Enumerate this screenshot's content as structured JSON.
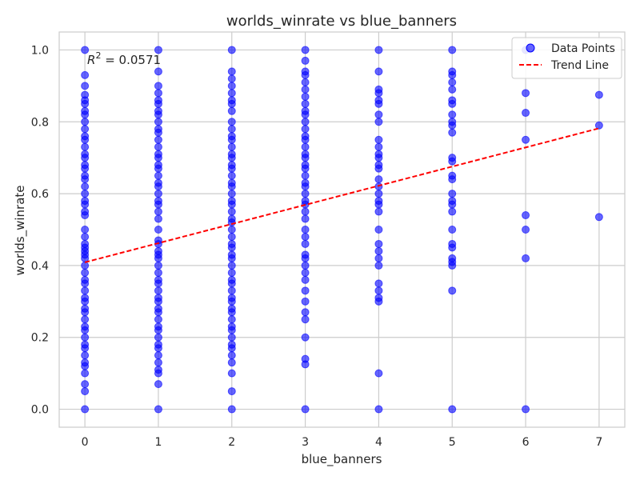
{
  "chart_data": {
    "type": "scatter",
    "title": "worlds_winrate vs blue_banners",
    "xlabel": "blue_banners",
    "ylabel": "worlds_winrate",
    "xlim": [
      -0.35,
      7.35
    ],
    "ylim": [
      -0.05,
      1.05
    ],
    "xticks": [
      "0",
      "1",
      "2",
      "3",
      "4",
      "5",
      "6",
      "7"
    ],
    "yticks": [
      "0.0",
      "0.2",
      "0.4",
      "0.6",
      "0.8",
      "1.0"
    ],
    "grid": true,
    "legend_position": "top-right",
    "annotation": {
      "label": "R",
      "sup": "2",
      "value": " = 0.0571"
    },
    "colors": {
      "points": "#0000ff",
      "trend": "#ff0000",
      "grid": "#cccccc"
    },
    "series": [
      {
        "name": "Data Points",
        "kind": "scatter",
        "points": [
          [
            0,
            1.0
          ],
          [
            0,
            0.93
          ],
          [
            0,
            0.9
          ],
          [
            0,
            0.875
          ],
          [
            0,
            0.86
          ],
          [
            0,
            0.85
          ],
          [
            0,
            0.83
          ],
          [
            0,
            0.82
          ],
          [
            0,
            0.8
          ],
          [
            0,
            0.78
          ],
          [
            0,
            0.76
          ],
          [
            0,
            0.75
          ],
          [
            0,
            0.73
          ],
          [
            0,
            0.71
          ],
          [
            0,
            0.7
          ],
          [
            0,
            0.68
          ],
          [
            0,
            0.67
          ],
          [
            0,
            0.65
          ],
          [
            0,
            0.64
          ],
          [
            0,
            0.62
          ],
          [
            0,
            0.6
          ],
          [
            0,
            0.58
          ],
          [
            0,
            0.57
          ],
          [
            0,
            0.55
          ],
          [
            0,
            0.54
          ],
          [
            0,
            0.5
          ],
          [
            0,
            0.48
          ],
          [
            0,
            0.46
          ],
          [
            0,
            0.45
          ],
          [
            0,
            0.44
          ],
          [
            0,
            0.43
          ],
          [
            0,
            0.42
          ],
          [
            0,
            0.4
          ],
          [
            0,
            0.38
          ],
          [
            0,
            0.36
          ],
          [
            0,
            0.35
          ],
          [
            0,
            0.33
          ],
          [
            0,
            0.31
          ],
          [
            0,
            0.3
          ],
          [
            0,
            0.28
          ],
          [
            0,
            0.27
          ],
          [
            0,
            0.25
          ],
          [
            0,
            0.23
          ],
          [
            0,
            0.22
          ],
          [
            0,
            0.2
          ],
          [
            0,
            0.18
          ],
          [
            0,
            0.17
          ],
          [
            0,
            0.15
          ],
          [
            0,
            0.13
          ],
          [
            0,
            0.12
          ],
          [
            0,
            0.1
          ],
          [
            0,
            0.07
          ],
          [
            0,
            0.05
          ],
          [
            0,
            0.0
          ],
          [
            1,
            1.0
          ],
          [
            1,
            0.94
          ],
          [
            1,
            0.9
          ],
          [
            1,
            0.88
          ],
          [
            1,
            0.86
          ],
          [
            1,
            0.85
          ],
          [
            1,
            0.83
          ],
          [
            1,
            0.82
          ],
          [
            1,
            0.8
          ],
          [
            1,
            0.78
          ],
          [
            1,
            0.77
          ],
          [
            1,
            0.75
          ],
          [
            1,
            0.73
          ],
          [
            1,
            0.71
          ],
          [
            1,
            0.7
          ],
          [
            1,
            0.68
          ],
          [
            1,
            0.67
          ],
          [
            1,
            0.65
          ],
          [
            1,
            0.63
          ],
          [
            1,
            0.62
          ],
          [
            1,
            0.6
          ],
          [
            1,
            0.58
          ],
          [
            1,
            0.57
          ],
          [
            1,
            0.55
          ],
          [
            1,
            0.53
          ],
          [
            1,
            0.5
          ],
          [
            1,
            0.47
          ],
          [
            1,
            0.46
          ],
          [
            1,
            0.44
          ],
          [
            1,
            0.43
          ],
          [
            1,
            0.42
          ],
          [
            1,
            0.4
          ],
          [
            1,
            0.38
          ],
          [
            1,
            0.36
          ],
          [
            1,
            0.35
          ],
          [
            1,
            0.33
          ],
          [
            1,
            0.31
          ],
          [
            1,
            0.3
          ],
          [
            1,
            0.28
          ],
          [
            1,
            0.27
          ],
          [
            1,
            0.25
          ],
          [
            1,
            0.23
          ],
          [
            1,
            0.22
          ],
          [
            1,
            0.2
          ],
          [
            1,
            0.18
          ],
          [
            1,
            0.17
          ],
          [
            1,
            0.15
          ],
          [
            1,
            0.13
          ],
          [
            1,
            0.11
          ],
          [
            1,
            0.1
          ],
          [
            1,
            0.07
          ],
          [
            1,
            0.0
          ],
          [
            2,
            1.0
          ],
          [
            2,
            0.94
          ],
          [
            2,
            0.92
          ],
          [
            2,
            0.9
          ],
          [
            2,
            0.88
          ],
          [
            2,
            0.86
          ],
          [
            2,
            0.85
          ],
          [
            2,
            0.83
          ],
          [
            2,
            0.8
          ],
          [
            2,
            0.78
          ],
          [
            2,
            0.76
          ],
          [
            2,
            0.75
          ],
          [
            2,
            0.73
          ],
          [
            2,
            0.71
          ],
          [
            2,
            0.7
          ],
          [
            2,
            0.68
          ],
          [
            2,
            0.67
          ],
          [
            2,
            0.65
          ],
          [
            2,
            0.63
          ],
          [
            2,
            0.62
          ],
          [
            2,
            0.6
          ],
          [
            2,
            0.58
          ],
          [
            2,
            0.57
          ],
          [
            2,
            0.55
          ],
          [
            2,
            0.53
          ],
          [
            2,
            0.52
          ],
          [
            2,
            0.5
          ],
          [
            2,
            0.48
          ],
          [
            2,
            0.46
          ],
          [
            2,
            0.45
          ],
          [
            2,
            0.43
          ],
          [
            2,
            0.42
          ],
          [
            2,
            0.4
          ],
          [
            2,
            0.38
          ],
          [
            2,
            0.36
          ],
          [
            2,
            0.35
          ],
          [
            2,
            0.33
          ],
          [
            2,
            0.31
          ],
          [
            2,
            0.3
          ],
          [
            2,
            0.28
          ],
          [
            2,
            0.27
          ],
          [
            2,
            0.25
          ],
          [
            2,
            0.23
          ],
          [
            2,
            0.22
          ],
          [
            2,
            0.2
          ],
          [
            2,
            0.18
          ],
          [
            2,
            0.17
          ],
          [
            2,
            0.15
          ],
          [
            2,
            0.13
          ],
          [
            2,
            0.1
          ],
          [
            2,
            0.05
          ],
          [
            2,
            0.0
          ],
          [
            3,
            1.0
          ],
          [
            3,
            0.97
          ],
          [
            3,
            0.94
          ],
          [
            3,
            0.93
          ],
          [
            3,
            0.91
          ],
          [
            3,
            0.89
          ],
          [
            3,
            0.87
          ],
          [
            3,
            0.85
          ],
          [
            3,
            0.83
          ],
          [
            3,
            0.82
          ],
          [
            3,
            0.8
          ],
          [
            3,
            0.78
          ],
          [
            3,
            0.76
          ],
          [
            3,
            0.75
          ],
          [
            3,
            0.73
          ],
          [
            3,
            0.71
          ],
          [
            3,
            0.7
          ],
          [
            3,
            0.68
          ],
          [
            3,
            0.67
          ],
          [
            3,
            0.65
          ],
          [
            3,
            0.63
          ],
          [
            3,
            0.62
          ],
          [
            3,
            0.6
          ],
          [
            3,
            0.58
          ],
          [
            3,
            0.57
          ],
          [
            3,
            0.55
          ],
          [
            3,
            0.53
          ],
          [
            3,
            0.5
          ],
          [
            3,
            0.48
          ],
          [
            3,
            0.46
          ],
          [
            3,
            0.43
          ],
          [
            3,
            0.42
          ],
          [
            3,
            0.4
          ],
          [
            3,
            0.38
          ],
          [
            3,
            0.36
          ],
          [
            3,
            0.33
          ],
          [
            3,
            0.3
          ],
          [
            3,
            0.27
          ],
          [
            3,
            0.25
          ],
          [
            3,
            0.2
          ],
          [
            3,
            0.14
          ],
          [
            3,
            0.125
          ],
          [
            3,
            0.0
          ],
          [
            4,
            1.0
          ],
          [
            4,
            0.94
          ],
          [
            4,
            0.89
          ],
          [
            4,
            0.88
          ],
          [
            4,
            0.86
          ],
          [
            4,
            0.85
          ],
          [
            4,
            0.82
          ],
          [
            4,
            0.8
          ],
          [
            4,
            0.75
          ],
          [
            4,
            0.73
          ],
          [
            4,
            0.71
          ],
          [
            4,
            0.7
          ],
          [
            4,
            0.68
          ],
          [
            4,
            0.67
          ],
          [
            4,
            0.64
          ],
          [
            4,
            0.62
          ],
          [
            4,
            0.6
          ],
          [
            4,
            0.58
          ],
          [
            4,
            0.57
          ],
          [
            4,
            0.55
          ],
          [
            4,
            0.5
          ],
          [
            4,
            0.46
          ],
          [
            4,
            0.44
          ],
          [
            4,
            0.42
          ],
          [
            4,
            0.4
          ],
          [
            4,
            0.35
          ],
          [
            4,
            0.33
          ],
          [
            4,
            0.31
          ],
          [
            4,
            0.3
          ],
          [
            4,
            0.1
          ],
          [
            4,
            0.0
          ],
          [
            5,
            1.0
          ],
          [
            5,
            0.94
          ],
          [
            5,
            0.93
          ],
          [
            5,
            0.91
          ],
          [
            5,
            0.89
          ],
          [
            5,
            0.86
          ],
          [
            5,
            0.85
          ],
          [
            5,
            0.82
          ],
          [
            5,
            0.8
          ],
          [
            5,
            0.79
          ],
          [
            5,
            0.77
          ],
          [
            5,
            0.7
          ],
          [
            5,
            0.69
          ],
          [
            5,
            0.65
          ],
          [
            5,
            0.64
          ],
          [
            5,
            0.6
          ],
          [
            5,
            0.58
          ],
          [
            5,
            0.57
          ],
          [
            5,
            0.55
          ],
          [
            5,
            0.5
          ],
          [
            5,
            0.46
          ],
          [
            5,
            0.45
          ],
          [
            5,
            0.42
          ],
          [
            5,
            0.41
          ],
          [
            5,
            0.4
          ],
          [
            5,
            0.33
          ],
          [
            5,
            0.0
          ],
          [
            6,
            1.0
          ],
          [
            6,
            0.88
          ],
          [
            6,
            0.825
          ],
          [
            6,
            0.75
          ],
          [
            6,
            0.54
          ],
          [
            6,
            0.5
          ],
          [
            6,
            0.42
          ],
          [
            6,
            0.0
          ],
          [
            7,
            0.875
          ],
          [
            7,
            0.79
          ],
          [
            7,
            0.535
          ]
        ]
      },
      {
        "name": "Trend Line",
        "kind": "line",
        "points": [
          [
            0,
            0.409
          ],
          [
            7,
            0.782
          ]
        ]
      }
    ]
  }
}
